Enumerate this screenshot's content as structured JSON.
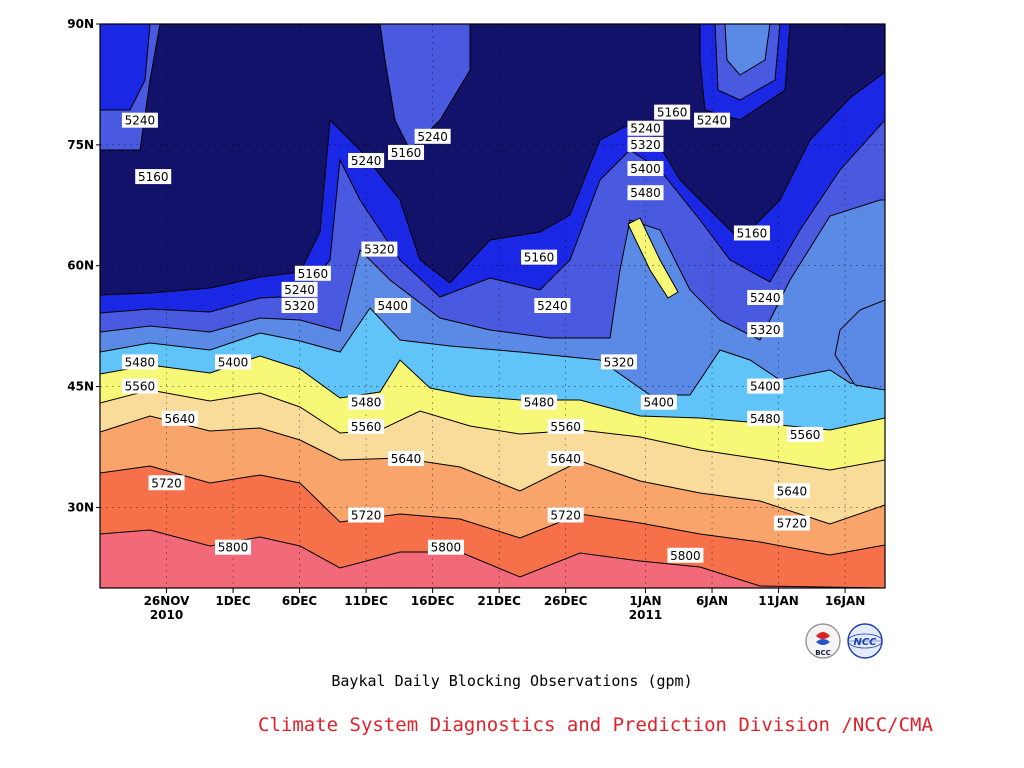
{
  "title": "Baykal Daily Blocking Observations (gpm)",
  "credit": "Climate System Diagnostics and Prediction Division /NCC/CMA",
  "logos": [
    {
      "name": "bcc-logo",
      "text": "BCC"
    },
    {
      "name": "ncc-logo",
      "text": "NCC"
    }
  ],
  "chart_data": {
    "type": "contour-filled",
    "title": "Baykal Daily Blocking Observations (gpm)",
    "xlabel": "",
    "ylabel": "",
    "x_ticks": [
      "26NOV\n2010",
      "1DEC",
      "6DEC",
      "11DEC",
      "16DEC",
      "21DEC",
      "26DEC",
      "1JAN\n2011",
      "6JAN",
      "11JAN",
      "16JAN"
    ],
    "y_ticks": [
      "90N",
      "75N",
      "60N",
      "45N",
      "30N"
    ],
    "xlim": [
      "2010-11-21",
      "2011-01-19"
    ],
    "ylim_lat": [
      20,
      90
    ],
    "grid": true,
    "levels": [
      5160,
      5240,
      5320,
      5400,
      5480,
      5560,
      5640,
      5720,
      5800
    ],
    "level_colors": [
      "#12126a",
      "#1a28e6",
      "#4a5ae0",
      "#5a8ae6",
      "#60c4f8",
      "#f8f878",
      "#fadc9a",
      "#f8a46a",
      "#f6704a",
      "#f26a7a"
    ],
    "contour_labels": [
      {
        "value": "5240",
        "date": "2010-11-24",
        "lat": 78
      },
      {
        "value": "5160",
        "date": "2010-11-25",
        "lat": 71
      },
      {
        "value": "5240",
        "date": "2010-12-11",
        "lat": 73
      },
      {
        "value": "5160",
        "date": "2010-12-14",
        "lat": 74
      },
      {
        "value": "5240",
        "date": "2010-12-16",
        "lat": 76
      },
      {
        "value": "5160",
        "date": "2010-12-07",
        "lat": 59
      },
      {
        "value": "5240",
        "date": "2010-12-06",
        "lat": 57
      },
      {
        "value": "5320",
        "date": "2010-12-06",
        "lat": 55
      },
      {
        "value": "5320",
        "date": "2010-12-12",
        "lat": 62
      },
      {
        "value": "5400",
        "date": "2010-12-13",
        "lat": 55
      },
      {
        "value": "5160",
        "date": "2010-12-24",
        "lat": 61
      },
      {
        "value": "5240",
        "date": "2010-12-25",
        "lat": 55
      },
      {
        "value": "5320",
        "date": "2010-12-30",
        "lat": 48
      },
      {
        "value": "5160",
        "date": "2011-01-03",
        "lat": 79
      },
      {
        "value": "5240",
        "date": "2011-01-01",
        "lat": 77
      },
      {
        "value": "5320",
        "date": "2011-01-01",
        "lat": 75
      },
      {
        "value": "5400",
        "date": "2011-01-01",
        "lat": 72
      },
      {
        "value": "5480",
        "date": "2011-01-01",
        "lat": 69
      },
      {
        "value": "5240",
        "date": "2011-01-06",
        "lat": 78
      },
      {
        "value": "5160",
        "date": "2011-01-09",
        "lat": 64
      },
      {
        "value": "5240",
        "date": "2011-01-10",
        "lat": 56
      },
      {
        "value": "5320",
        "date": "2011-01-10",
        "lat": 52
      },
      {
        "value": "5400",
        "date": "2011-01-10",
        "lat": 45
      },
      {
        "value": "5480",
        "date": "2011-01-10",
        "lat": 41
      },
      {
        "value": "5560",
        "date": "2011-01-13",
        "lat": 39
      },
      {
        "value": "5640",
        "date": "2011-01-12",
        "lat": 32
      },
      {
        "value": "5720",
        "date": "2011-01-12",
        "lat": 28
      },
      {
        "value": "5480",
        "date": "2010-11-24",
        "lat": 48
      },
      {
        "value": "5400",
        "date": "2010-12-01",
        "lat": 48
      },
      {
        "value": "5560",
        "date": "2010-11-24",
        "lat": 45
      },
      {
        "value": "5640",
        "date": "2010-11-27",
        "lat": 41
      },
      {
        "value": "5720",
        "date": "2010-11-26",
        "lat": 33
      },
      {
        "value": "5800",
        "date": "2010-12-01",
        "lat": 25
      },
      {
        "value": "5480",
        "date": "2010-12-11",
        "lat": 43
      },
      {
        "value": "5560",
        "date": "2010-12-11",
        "lat": 40
      },
      {
        "value": "5640",
        "date": "2010-12-14",
        "lat": 36
      },
      {
        "value": "5720",
        "date": "2010-12-11",
        "lat": 29
      },
      {
        "value": "5800",
        "date": "2010-12-17",
        "lat": 25
      },
      {
        "value": "5480",
        "date": "2010-12-24",
        "lat": 43
      },
      {
        "value": "5560",
        "date": "2010-12-26",
        "lat": 40
      },
      {
        "value": "5640",
        "date": "2010-12-26",
        "lat": 36
      },
      {
        "value": "5720",
        "date": "2010-12-26",
        "lat": 29
      },
      {
        "value": "5400",
        "date": "2011-01-02",
        "lat": 43
      },
      {
        "value": "5800",
        "date": "2011-01-04",
        "lat": 24
      }
    ]
  }
}
